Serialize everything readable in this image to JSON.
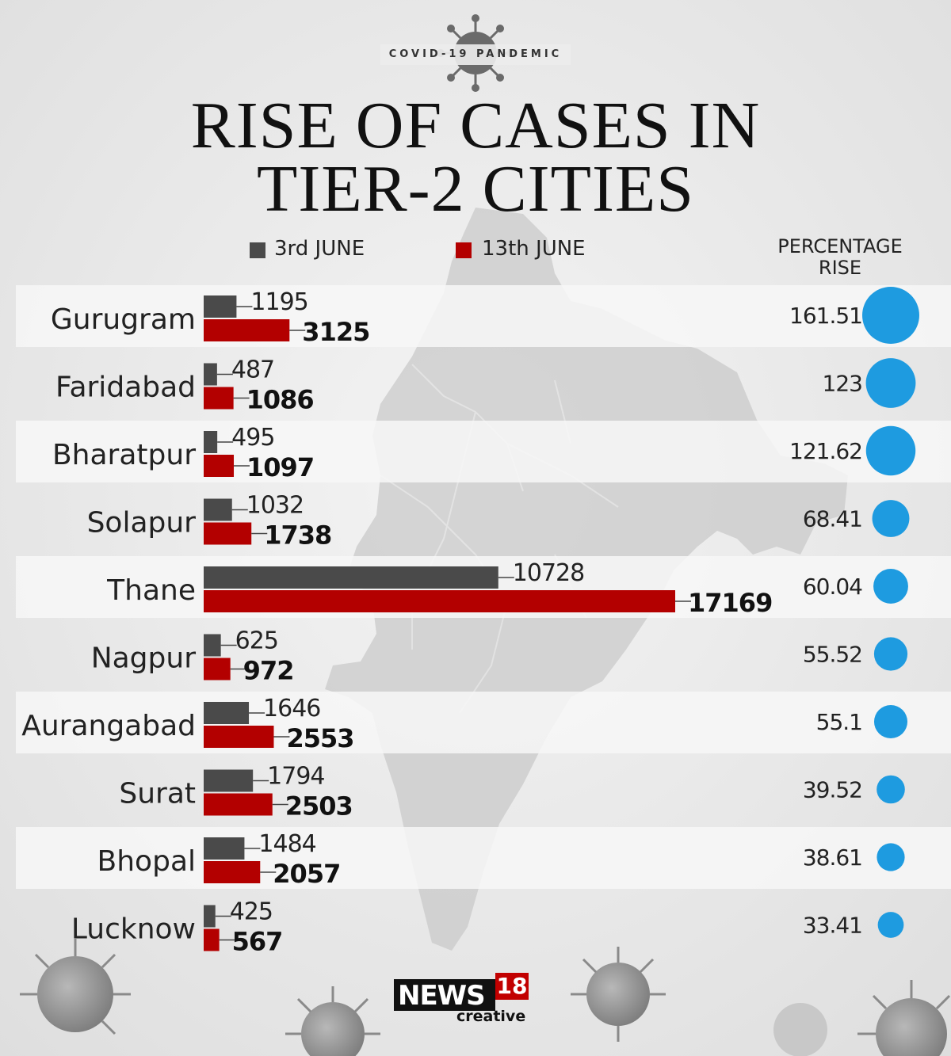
{
  "header": {
    "kicker": "COVID-19 PANDEMIC",
    "title_line1": "RISE OF CASES IN",
    "title_line2": "TIER-2 CITIES"
  },
  "legend": {
    "series1": "3rd JUNE",
    "series2": "13th JUNE",
    "percentage_header_line1": "PERCENTAGE",
    "percentage_header_line2": "RISE"
  },
  "colors": {
    "series1": "#4a4a4a",
    "series2": "#b30000",
    "bubble": "#1e9be0",
    "band": "#f7f7f7"
  },
  "brand": {
    "name": "NEWS",
    "number": "18",
    "sub": "creative"
  },
  "chart_data": {
    "type": "bar",
    "orientation": "horizontal",
    "categories": [
      "Gurugram",
      "Faridabad",
      "Bharatpur",
      "Solapur",
      "Thane",
      "Nagpur",
      "Aurangabad",
      "Surat",
      "Bhopal",
      "Lucknow"
    ],
    "series": [
      {
        "name": "3rd JUNE",
        "values": [
          1195,
          487,
          495,
          1032,
          10728,
          625,
          1646,
          1794,
          1484,
          425
        ]
      },
      {
        "name": "13th JUNE",
        "values": [
          3125,
          1086,
          1097,
          1738,
          17169,
          972,
          2553,
          2503,
          2057,
          567
        ]
      }
    ],
    "percentage_rise": {
      "name": "PERCENTAGE RISE",
      "values": [
        161.51,
        123,
        121.62,
        68.41,
        60.04,
        55.52,
        55.1,
        39.52,
        38.61,
        33.41
      ],
      "labels": [
        "161.51",
        "123",
        "121.62",
        "68.41",
        "60.04",
        "55.52",
        "55.1",
        "39.52",
        "38.61",
        "33.41"
      ]
    },
    "legend_position": "top",
    "grid": false
  }
}
